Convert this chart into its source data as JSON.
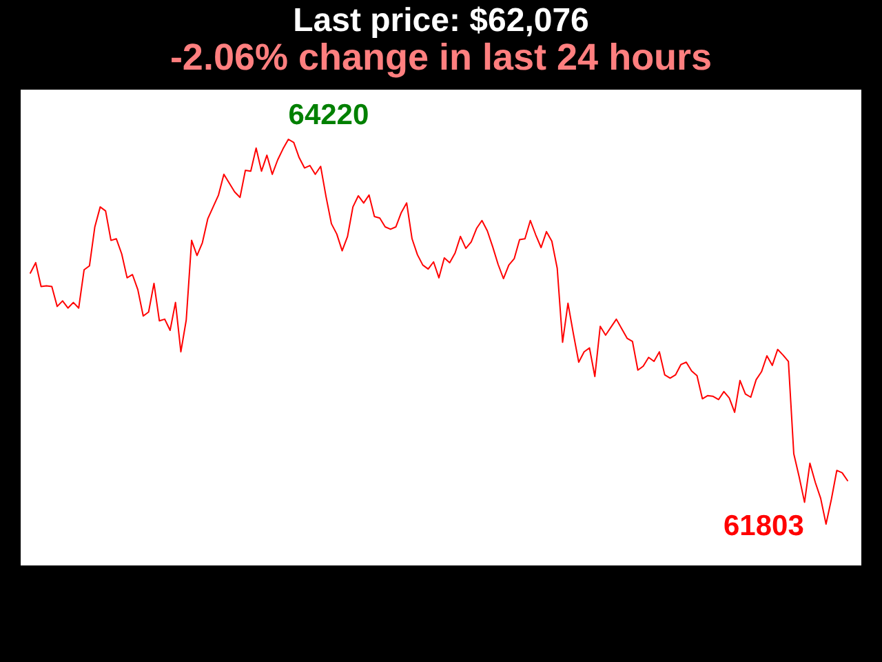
{
  "chart_data": {
    "type": "line",
    "title": "Last price: $62,076",
    "subtitle": "-2.06% change in last 24 hours",
    "tick_labels": false,
    "color": "#ff0000",
    "categories": [
      null,
      null,
      null,
      null,
      null,
      null,
      null,
      null,
      null,
      null,
      null,
      null,
      null,
      null,
      null,
      null,
      null,
      null,
      null,
      null,
      null,
      null,
      null,
      null,
      null,
      null,
      null,
      null,
      null,
      null,
      null,
      null,
      null,
      null,
      null,
      null,
      null,
      null,
      null,
      null,
      null,
      null,
      null,
      null,
      null,
      null,
      null,
      null,
      null,
      null,
      null,
      null,
      null,
      null,
      null,
      null,
      null,
      null,
      null,
      null,
      null,
      null,
      null,
      null,
      null,
      null,
      null,
      null,
      null,
      null,
      null,
      null,
      null,
      null,
      null,
      null,
      null,
      null,
      null,
      null,
      null,
      null,
      null,
      null,
      null,
      null,
      null,
      null,
      null,
      null,
      null,
      null,
      null,
      null,
      null,
      null,
      null,
      null,
      null,
      null,
      null,
      null,
      null,
      null,
      null,
      null,
      null,
      null,
      null,
      null,
      null,
      null,
      null,
      null,
      null,
      null,
      null,
      null,
      null,
      null,
      null,
      null,
      null,
      null,
      null,
      null,
      null,
      null,
      null,
      null,
      null,
      null,
      null,
      null,
      null,
      null,
      null,
      null,
      null,
      null,
      null,
      null,
      null,
      null,
      null,
      null,
      null,
      null,
      null,
      null,
      null,
      null,
      null
    ],
    "values": [
      63380,
      63445,
      63295,
      63300,
      63295,
      63170,
      63205,
      63160,
      63195,
      63160,
      63400,
      63425,
      63670,
      63795,
      63770,
      63585,
      63595,
      63500,
      63350,
      63370,
      63275,
      63110,
      63135,
      63315,
      63080,
      63090,
      63020,
      63195,
      62885,
      63085,
      63585,
      63490,
      63570,
      63720,
      63795,
      63870,
      64000,
      63945,
      63890,
      63855,
      64025,
      64020,
      64165,
      64020,
      64120,
      64000,
      64090,
      64160,
      64220,
      64200,
      64105,
      64040,
      64055,
      64000,
      64050,
      63860,
      63690,
      63625,
      63520,
      63610,
      63795,
      63865,
      63820,
      63870,
      63735,
      63725,
      63670,
      63655,
      63670,
      63760,
      63820,
      63595,
      63495,
      63430,
      63405,
      63450,
      63350,
      63475,
      63445,
      63505,
      63610,
      63535,
      63575,
      63660,
      63710,
      63645,
      63545,
      63435,
      63345,
      63430,
      63470,
      63590,
      63595,
      63710,
      63620,
      63540,
      63640,
      63580,
      63410,
      62945,
      63190,
      63000,
      62820,
      62885,
      62910,
      62730,
      63045,
      62990,
      63040,
      63090,
      63030,
      62970,
      62950,
      62770,
      62795,
      62850,
      62825,
      62885,
      62740,
      62720,
      62740,
      62805,
      62820,
      62765,
      62735,
      62590,
      62610,
      62605,
      62585,
      62635,
      62595,
      62505,
      62705,
      62620,
      62600,
      62710,
      62760,
      62860,
      62800,
      62900,
      62865,
      62825,
      62245,
      62100,
      61940,
      62185,
      62065,
      61965,
      61803,
      61960,
      62140,
      62125,
      62076
    ],
    "value_labels": [
      null,
      null,
      null,
      null,
      null,
      null,
      null,
      null,
      null,
      null,
      null,
      null,
      null,
      null,
      null,
      null,
      null,
      null,
      null,
      null,
      null,
      null,
      null,
      null,
      null,
      null,
      null,
      null,
      null,
      null,
      null,
      null,
      null,
      null,
      null,
      null,
      null,
      null,
      null,
      null,
      null,
      null,
      null,
      null,
      null,
      null,
      null,
      null,
      "64220",
      null,
      null,
      null,
      null,
      null,
      null,
      null,
      null,
      null,
      null,
      null,
      null,
      null,
      null,
      null,
      null,
      null,
      null,
      null,
      null,
      null,
      null,
      null,
      null,
      null,
      null,
      null,
      null,
      null,
      null,
      null,
      null,
      null,
      null,
      null,
      null,
      null,
      null,
      null,
      null,
      null,
      null,
      null,
      null,
      null,
      null,
      null,
      null,
      null,
      null,
      null,
      null,
      null,
      null,
      null,
      null,
      null,
      null,
      null,
      null,
      null,
      null,
      null,
      null,
      null,
      null,
      null,
      null,
      null,
      null,
      null,
      null,
      null,
      null,
      null,
      null,
      null,
      null,
      null,
      null,
      null,
      null,
      null,
      null,
      null,
      null,
      null,
      null,
      null,
      null,
      null,
      null,
      null,
      null,
      null,
      null,
      null,
      null,
      null,
      "61803",
      null,
      null,
      null,
      null
    ]
  }
}
